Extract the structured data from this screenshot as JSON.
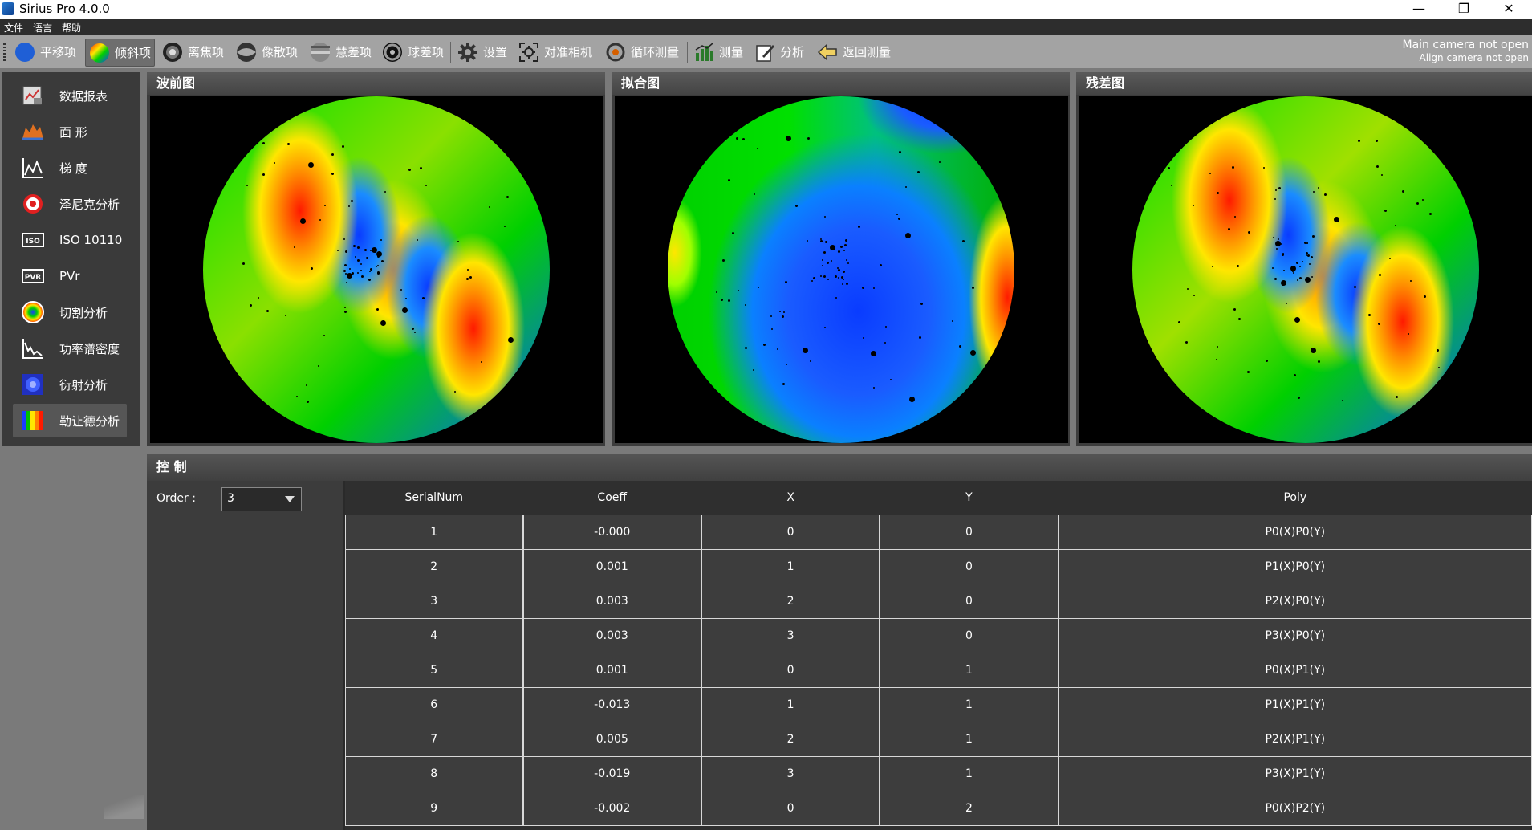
{
  "app": {
    "title": "Sirius Pro 4.0.0"
  },
  "window_buttons": {
    "minimize": "—",
    "restore": "❐",
    "close": "✕"
  },
  "menu": [
    "文件",
    "语言",
    "帮助"
  ],
  "toolbar": {
    "items": [
      {
        "label": "平移项",
        "icon": "piston-icon"
      },
      {
        "label": "倾斜项",
        "icon": "tilt-icon"
      },
      {
        "label": "离焦项",
        "icon": "defocus-icon"
      },
      {
        "label": "像散项",
        "icon": "astigmatism-icon"
      },
      {
        "label": "慧差项",
        "icon": "coma-icon"
      },
      {
        "label": "球差项",
        "icon": "spherical-icon"
      },
      {
        "label": "设置",
        "icon": "gear-icon"
      },
      {
        "label": "对准相机",
        "icon": "crosshair-icon"
      },
      {
        "label": "循环测量",
        "icon": "loop-icon"
      },
      {
        "label": "测量",
        "icon": "bar-chart-icon"
      },
      {
        "label": "分析",
        "icon": "edit-icon"
      },
      {
        "label": "返回测量",
        "icon": "back-arrow-icon"
      }
    ],
    "camera_status": {
      "main": "Main camera not open",
      "align": "Align camera not open"
    }
  },
  "sidebar": {
    "items": [
      {
        "label": "数据报表",
        "icon": "report-icon"
      },
      {
        "label": "面 形",
        "icon": "surface-icon"
      },
      {
        "label": "梯 度",
        "icon": "gradient-icon"
      },
      {
        "label": "泽尼克分析",
        "icon": "zernike-icon"
      },
      {
        "label": "ISO 10110",
        "icon": "iso-icon"
      },
      {
        "label": "PVr",
        "icon": "pvr-icon"
      },
      {
        "label": "切割分析",
        "icon": "cut-icon"
      },
      {
        "label": "功率谱密度",
        "icon": "psd-icon"
      },
      {
        "label": "衍射分析",
        "icon": "diffraction-icon"
      },
      {
        "label": "勒让德分析",
        "icon": "legendre-icon"
      }
    ],
    "active_index": 9
  },
  "panels": {
    "wavefront": {
      "title": "波前图"
    },
    "fit": {
      "title": "拟合图"
    },
    "residual": {
      "title": "残差图"
    }
  },
  "control": {
    "title": "控 制",
    "order_label": "Order :",
    "order_value": "3",
    "table": {
      "columns": [
        "SerialNum",
        "Coeff",
        "X",
        "Y",
        "Poly"
      ],
      "rows": [
        [
          "1",
          "-0.000",
          "0",
          "0",
          "P0(X)P0(Y)"
        ],
        [
          "2",
          "0.001",
          "1",
          "0",
          "P1(X)P0(Y)"
        ],
        [
          "3",
          "0.003",
          "2",
          "0",
          "P2(X)P0(Y)"
        ],
        [
          "4",
          "0.003",
          "3",
          "0",
          "P3(X)P0(Y)"
        ],
        [
          "5",
          "0.001",
          "0",
          "1",
          "P0(X)P1(Y)"
        ],
        [
          "6",
          "-0.013",
          "1",
          "1",
          "P1(X)P1(Y)"
        ],
        [
          "7",
          "0.005",
          "2",
          "1",
          "P2(X)P1(Y)"
        ],
        [
          "8",
          "-0.019",
          "3",
          "1",
          "P3(X)P1(Y)"
        ],
        [
          "9",
          "-0.002",
          "0",
          "2",
          "P0(X)P2(Y)"
        ]
      ]
    }
  },
  "colors": {
    "accent_blue": "#1f5fd6",
    "map_red": "#ff1a00",
    "map_yellow": "#ffe600",
    "map_green": "#00e000",
    "map_blue": "#0a3cff"
  }
}
